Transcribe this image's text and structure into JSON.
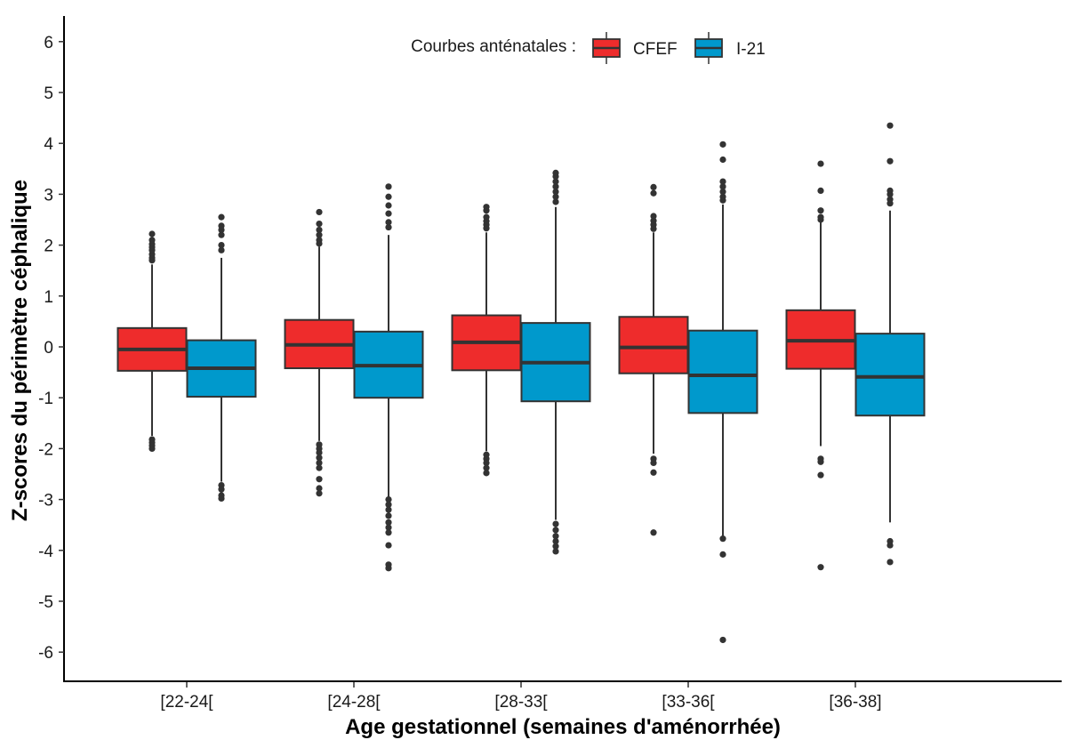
{
  "chart_data": {
    "type": "boxplot",
    "title": "",
    "xlabel": "Age gestationnel (semaines d'aménorrhée)",
    "ylabel": "Z-scores du périmètre céphalique",
    "ylim": [
      -6.7,
      6.6
    ],
    "yticks": [
      -6,
      -5,
      -4,
      -3,
      -2,
      -1,
      0,
      1,
      2,
      3,
      4,
      5,
      6
    ],
    "categories": [
      "[22-24[",
      "[24-28[",
      "[28-33[",
      "[33-36[",
      "[36-38]"
    ],
    "grid": false,
    "legend": {
      "title": "Courbes anténatales :",
      "position": "top-center"
    },
    "series": [
      {
        "name": "CFEF",
        "color": "#EE2C2C",
        "boxes": [
          {
            "whisker_low": -1.75,
            "q1": -0.47,
            "median": -0.05,
            "q3": 0.37,
            "whisker_high": 1.62,
            "outliers": [
              1.7,
              1.75,
              1.82,
              1.9,
              1.96,
              2.02,
              2.1,
              2.22,
              -1.82,
              -1.88,
              -1.94,
              -2.0
            ]
          },
          {
            "whisker_low": -1.85,
            "q1": -0.42,
            "median": 0.04,
            "q3": 0.53,
            "whisker_high": 1.97,
            "outliers": [
              2.03,
              2.1,
              2.2,
              2.3,
              2.42,
              2.65,
              -1.92,
              -2.0,
              -2.08,
              -2.18,
              -2.28,
              -2.38,
              -2.6,
              -2.78,
              -2.88
            ]
          },
          {
            "whisker_low": -2.05,
            "q1": -0.46,
            "median": 0.09,
            "q3": 0.62,
            "whisker_high": 2.25,
            "outliers": [
              2.33,
              2.4,
              2.47,
              2.55,
              2.68,
              2.75,
              -2.12,
              -2.2,
              -2.28,
              -2.38,
              -2.48
            ]
          },
          {
            "whisker_low": -2.1,
            "q1": -0.52,
            "median": -0.01,
            "q3": 0.59,
            "whisker_high": 2.25,
            "outliers": [
              2.32,
              2.4,
              2.48,
              2.57,
              3.02,
              3.14,
              -2.2,
              -2.28,
              -2.47,
              -3.65
            ]
          },
          {
            "whisker_low": -1.95,
            "q1": -0.43,
            "median": 0.12,
            "q3": 0.72,
            "whisker_high": 2.45,
            "outliers": [
              2.5,
              2.55,
              2.68,
              3.07,
              3.6,
              -2.2,
              -2.26,
              -2.52,
              -4.33
            ]
          }
        ]
      },
      {
        "name": "I-21",
        "color": "#0099CC",
        "boxes": [
          {
            "whisker_low": -2.65,
            "q1": -0.98,
            "median": -0.42,
            "q3": 0.13,
            "whisker_high": 1.75,
            "outliers": [
              1.9,
              2.0,
              2.2,
              2.3,
              2.38,
              2.55,
              -2.72,
              -2.8,
              -2.92,
              -2.98
            ]
          },
          {
            "whisker_low": -2.95,
            "q1": -1.0,
            "median": -0.37,
            "q3": 0.3,
            "whisker_high": 2.2,
            "outliers": [
              2.35,
              2.45,
              2.62,
              2.78,
              2.95,
              3.15,
              -3.0,
              -3.1,
              -3.2,
              -3.32,
              -3.45,
              -3.55,
              -3.65,
              -3.9,
              -4.28,
              -4.35
            ]
          },
          {
            "whisker_low": -3.4,
            "q1": -1.07,
            "median": -0.31,
            "q3": 0.47,
            "whisker_high": 2.75,
            "outliers": [
              2.85,
              2.95,
              3.05,
              3.15,
              3.25,
              3.35,
              3.42,
              -3.48,
              -3.6,
              -3.72,
              -3.82,
              -3.92,
              -4.02
            ]
          },
          {
            "whisker_low": -3.72,
            "q1": -1.3,
            "median": -0.56,
            "q3": 0.32,
            "whisker_high": 2.8,
            "outliers": [
              2.88,
              2.95,
              3.05,
              3.15,
              3.25,
              3.68,
              3.98,
              -3.77,
              -4.08,
              -5.76
            ]
          },
          {
            "whisker_low": -3.45,
            "q1": -1.35,
            "median": -0.59,
            "q3": 0.26,
            "whisker_high": 2.68,
            "outliers": [
              2.82,
              2.9,
              3.0,
              3.07,
              3.65,
              4.35,
              -3.82,
              -3.9,
              -4.23
            ]
          }
        ]
      }
    ]
  }
}
